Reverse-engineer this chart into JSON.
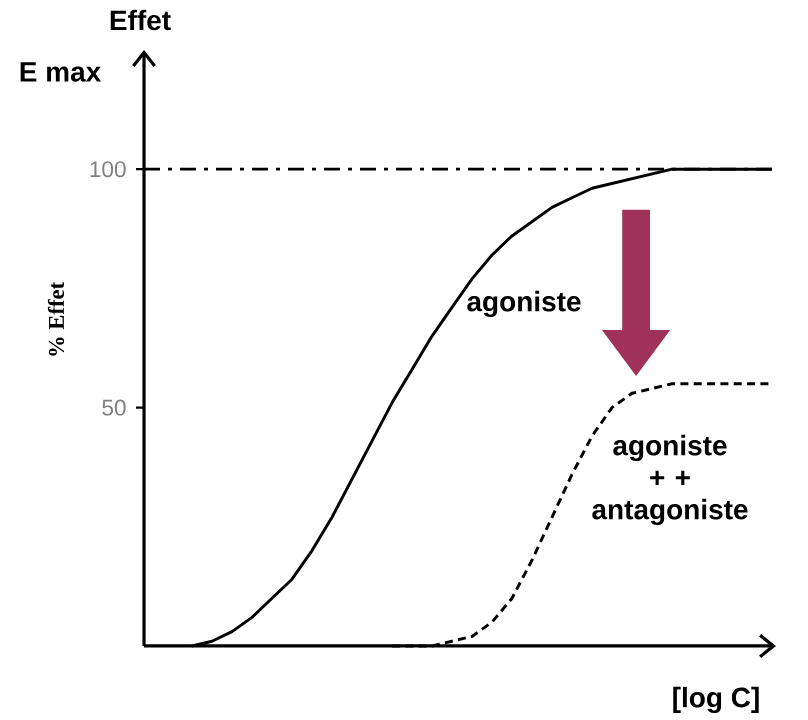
{
  "chart_data": {
    "type": "line",
    "title": "Effet",
    "ylabel": "% Effet",
    "xlabel": "[log C]",
    "annotations": [
      "E max"
    ],
    "categories": [
      null,
      null,
      null,
      null,
      null,
      null,
      null,
      null,
      null,
      null,
      null,
      null,
      null,
      null,
      null,
      null,
      null,
      null,
      null,
      null,
      null,
      null,
      null,
      null,
      null,
      null,
      null,
      null,
      null,
      null,
      null,
      null
    ],
    "series": [
      {
        "name": "agoniste",
        "color": "#000000",
        "line_style": "solid",
        "values": [
          null,
          null,
          0,
          1,
          3,
          6,
          10,
          14,
          20,
          27,
          35,
          43,
          51,
          58,
          65,
          71,
          77,
          82,
          86,
          89,
          92,
          94,
          96,
          97,
          98,
          99,
          100,
          100,
          100,
          100,
          100,
          100
        ]
      },
      {
        "name": "agoniste + + antagoniste",
        "color": "#000000",
        "line_style": "dashed",
        "values": [
          null,
          null,
          null,
          null,
          null,
          null,
          null,
          null,
          null,
          null,
          null,
          null,
          0,
          0,
          0,
          1,
          2,
          5,
          10,
          18,
          27,
          36,
          44,
          50,
          53,
          54,
          55,
          55,
          55,
          55,
          55,
          55
        ]
      }
    ],
    "ylim": [
      0,
      125
    ],
    "yticks": [
      50,
      100
    ],
    "marker": "none",
    "ref_lines": [
      {
        "axis": "y",
        "value": 100,
        "line_style": "dashdotted",
        "color": "#000000"
      }
    ]
  }
}
